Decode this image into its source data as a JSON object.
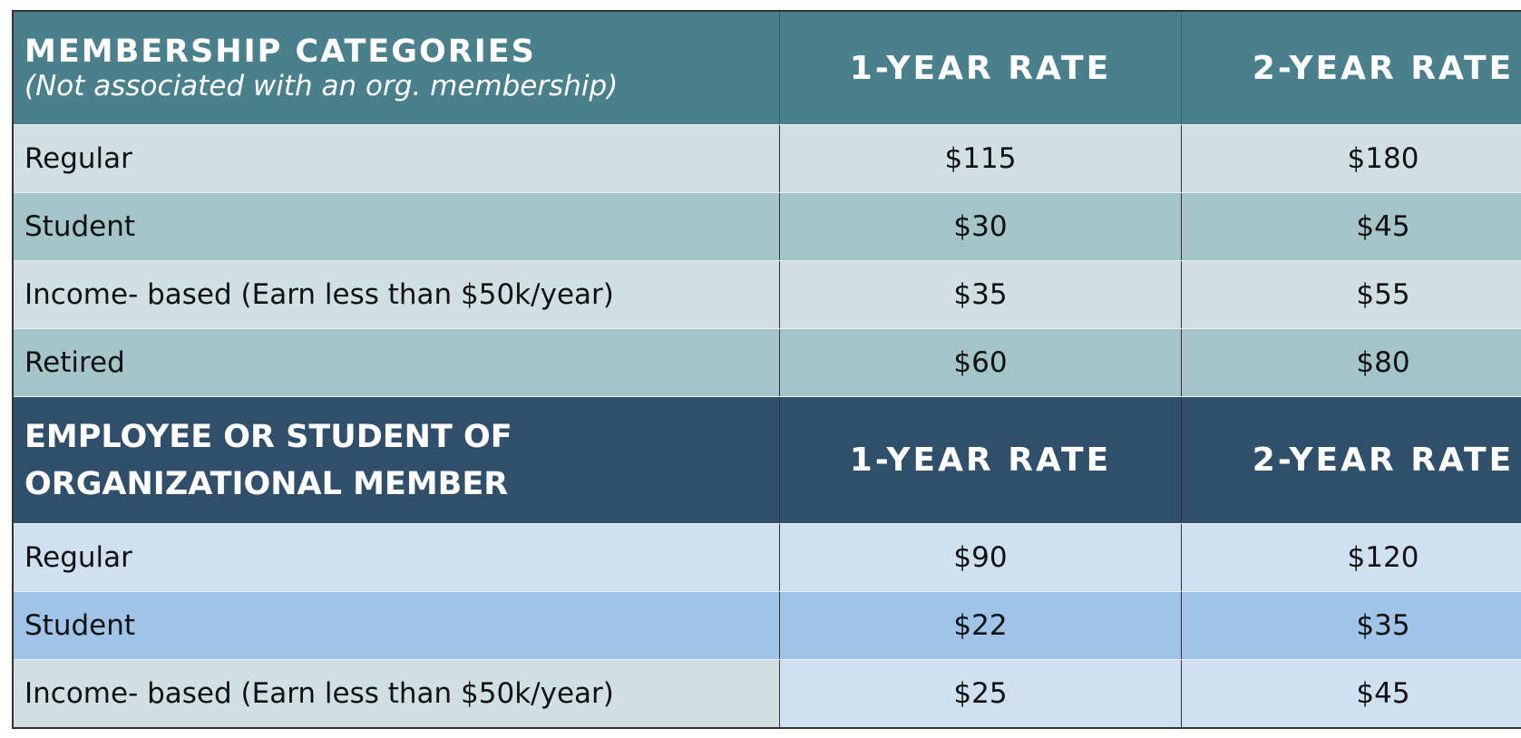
{
  "sections": [
    {
      "header": {
        "title": "MEMBERSHIP CATEGORIES",
        "subtitle": "(Not associated with an org. membership)",
        "col1": "1-YEAR RATE",
        "col2": "2-YEAR RATE"
      },
      "rows": [
        [
          "Regular",
          "$115",
          "$180"
        ],
        [
          "Student",
          "$30",
          "$45"
        ],
        [
          "Income- based (Earn less than $50k/year)",
          "$35",
          "$55"
        ],
        [
          "Retired",
          "$60",
          "$80"
        ]
      ]
    },
    {
      "header": {
        "title": "EMPLOYEE OR STUDENT OF ORGANIZATIONAL MEMBER",
        "col1": "1-YEAR RATE",
        "col2": "2-YEAR RATE"
      },
      "rows": [
        [
          "Regular",
          "$90",
          "$120"
        ],
        [
          "Student",
          "$22",
          "$35"
        ],
        [
          "Income- based (Earn less than $50k/year)",
          "$25",
          "$45"
        ]
      ]
    }
  ]
}
